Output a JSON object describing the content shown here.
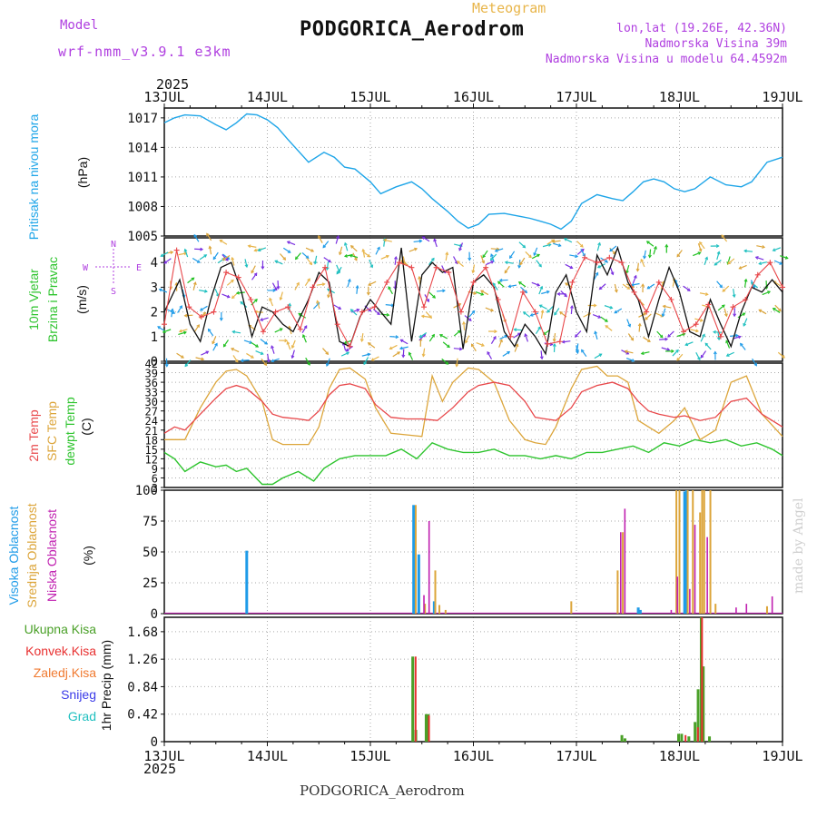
{
  "header": {
    "title": "PODGORICA_Aerodrom",
    "subtitle": "Meteogram",
    "model_label": "Model",
    "model_name": "wrf-nmm_v3.9.1 e3km",
    "lonlat": "lon,lat (19.26E, 42.36N)",
    "elevation": "Nadmorska Visina 39m",
    "model_elevation": "Nadmorska Visina u modelu 64.4592m",
    "year_top": "2025",
    "year_bottom": "2025",
    "footer_name": "PODGORICA_Aerodrom",
    "credit": "made by Angel"
  },
  "colors": {
    "pressure": "#1ea5e8",
    "temp2m": "#e8474a",
    "sfc": "#dca53a",
    "dewpt": "#2ec42e",
    "wind": "#111111",
    "high_cloud": "#1e9be8",
    "mid_cloud": "#dca53a",
    "low_cloud": "#c020b0",
    "total_precip": "#4aa028",
    "conv_precip": "#e83030",
    "frozen": "#f07a30",
    "snow": "#3a3ae8",
    "graupel": "#20c0c0",
    "purple_text": "#b040e0"
  },
  "chart_data": [
    {
      "type": "line",
      "title": "Pritisak na nivou mora",
      "ylabel": "(hPa)",
      "x_ticks": [
        "13JUL",
        "14JUL",
        "15JUL",
        "16JUL",
        "17JUL",
        "18JUL",
        "19JUL"
      ],
      "ylim": [
        1005,
        1018
      ],
      "y_ticks": [
        "1005",
        "1008",
        "1011",
        "1014",
        "1017"
      ],
      "series": [
        {
          "name": "Pritisak",
          "x": [
            0,
            0.1,
            0.2,
            0.35,
            0.5,
            0.6,
            0.7,
            0.8,
            0.9,
            1.0,
            1.1,
            1.2,
            1.4,
            1.55,
            1.65,
            1.75,
            1.85,
            2.0,
            2.1,
            2.25,
            2.4,
            2.5,
            2.6,
            2.75,
            2.85,
            2.95,
            3.05,
            3.15,
            3.3,
            3.45,
            3.55,
            3.65,
            3.75,
            3.85,
            3.95,
            4.05,
            4.2,
            4.35,
            4.45,
            4.55,
            4.65,
            4.75,
            4.85,
            4.95,
            5.05,
            5.15,
            5.3,
            5.45,
            5.6,
            5.7,
            5.85,
            6.0
          ],
          "values": [
            1016.5,
            1017.0,
            1017.3,
            1017.2,
            1016.3,
            1015.8,
            1016.5,
            1017.4,
            1017.3,
            1016.8,
            1016.0,
            1014.8,
            1012.5,
            1013.5,
            1013.0,
            1012.0,
            1011.8,
            1010.5,
            1009.3,
            1010.0,
            1010.5,
            1009.8,
            1008.8,
            1007.5,
            1006.5,
            1005.8,
            1006.2,
            1007.2,
            1007.3,
            1007.0,
            1006.8,
            1006.5,
            1006.2,
            1005.7,
            1006.5,
            1008.3,
            1009.2,
            1008.8,
            1008.6,
            1009.5,
            1010.5,
            1010.8,
            1010.5,
            1009.8,
            1009.5,
            1009.8,
            1011.0,
            1010.2,
            1010.0,
            1010.5,
            1012.5,
            1013.0
          ]
        }
      ]
    },
    {
      "type": "line",
      "title": "10m Vjetar Brzina i Pravac",
      "ylabel": "(m/s)",
      "ylim": [
        0,
        5
      ],
      "y_ticks": [
        "0",
        "1",
        "2",
        "3",
        "4"
      ],
      "compass": {
        "N": "N",
        "S": "S",
        "W": "W",
        "E": "E"
      },
      "series": [
        {
          "name": "Brzina",
          "x": [
            0,
            0.15,
            0.25,
            0.35,
            0.45,
            0.55,
            0.65,
            0.75,
            0.85,
            0.95,
            1.05,
            1.15,
            1.25,
            1.4,
            1.5,
            1.6,
            1.7,
            1.8,
            1.9,
            2.0,
            2.1,
            2.2,
            2.3,
            2.4,
            2.5,
            2.6,
            2.7,
            2.8,
            2.9,
            3.0,
            3.1,
            3.2,
            3.3,
            3.4,
            3.5,
            3.6,
            3.7,
            3.8,
            3.9,
            4.0,
            4.1,
            4.2,
            4.3,
            4.4,
            4.5,
            4.6,
            4.7,
            4.8,
            4.9,
            5.0,
            5.1,
            5.2,
            5.3,
            5.4,
            5.5,
            5.6,
            5.7,
            5.8,
            5.9,
            6.0
          ],
          "values": [
            2.0,
            3.3,
            1.5,
            0.8,
            2.5,
            3.8,
            4.0,
            2.8,
            1.0,
            2.2,
            2.0,
            1.5,
            1.2,
            2.5,
            3.6,
            3.2,
            0.8,
            0.6,
            1.8,
            2.5,
            2.0,
            1.5,
            4.6,
            0.8,
            3.5,
            4.0,
            3.6,
            3.8,
            0.5,
            3.2,
            3.5,
            3.0,
            1.2,
            0.6,
            1.5,
            1.0,
            0.3,
            2.8,
            3.5,
            2.0,
            1.2,
            4.3,
            3.5,
            4.6,
            3.2,
            2.5,
            1.0,
            2.5,
            3.8,
            2.8,
            1.2,
            1.0,
            2.5,
            1.5,
            0.6,
            2.0,
            3.0,
            2.8,
            3.3,
            2.8
          ]
        },
        {
          "name": "Brzina (+)",
          "x": [
            0,
            0.12,
            0.24,
            0.36,
            0.48,
            0.6,
            0.72,
            0.84,
            0.96,
            1.08,
            1.2,
            1.32,
            1.44,
            1.56,
            1.68,
            1.8,
            1.92,
            2.04,
            2.16,
            2.28,
            2.4,
            2.52,
            2.64,
            2.76,
            2.88,
            3.0,
            3.12,
            3.24,
            3.36,
            3.48,
            3.6,
            3.72,
            3.84,
            3.96,
            4.08,
            4.2,
            4.32,
            4.44,
            4.56,
            4.68,
            4.8,
            4.92,
            5.04,
            5.16,
            5.28,
            5.4,
            5.52,
            5.64,
            5.76,
            5.88,
            6.0
          ],
          "values": [
            1.5,
            4.5,
            2.2,
            1.8,
            2.0,
            3.6,
            3.4,
            2.5,
            1.2,
            2.0,
            2.2,
            1.3,
            3.0,
            3.8,
            1.5,
            0.6,
            2.0,
            2.2,
            3.2,
            4.0,
            3.8,
            2.2,
            3.8,
            3.6,
            2.0,
            3.2,
            3.8,
            2.5,
            1.0,
            2.8,
            2.0,
            0.7,
            0.8,
            3.2,
            4.2,
            4.0,
            4.2,
            4.0,
            2.8,
            2.0,
            3.2,
            2.5,
            1.2,
            1.5,
            2.3,
            1.0,
            2.2,
            2.5,
            3.5,
            4.0,
            3.0
          ]
        }
      ]
    },
    {
      "type": "line",
      "title": "2m Temp / SFC Temp / dewpt Temp",
      "ylabel": "(C)",
      "ylim": [
        3,
        42
      ],
      "y_ticks": [
        "3",
        "6",
        "9",
        "12",
        "15",
        "18",
        "21",
        "24",
        "27",
        "30",
        "33",
        "36",
        "39",
        "42"
      ],
      "series": [
        {
          "name": "2m Temp",
          "x": [
            0,
            0.1,
            0.2,
            0.35,
            0.5,
            0.6,
            0.7,
            0.8,
            0.95,
            1.05,
            1.15,
            1.3,
            1.4,
            1.5,
            1.6,
            1.7,
            1.8,
            1.95,
            2.05,
            2.2,
            2.35,
            2.5,
            2.65,
            2.8,
            2.95,
            3.05,
            3.2,
            3.35,
            3.5,
            3.6,
            3.7,
            3.8,
            3.95,
            4.05,
            4.2,
            4.35,
            4.5,
            4.6,
            4.7,
            4.8,
            4.95,
            5.05,
            5.2,
            5.35,
            5.5,
            5.65,
            5.8,
            6.0
          ],
          "values": [
            20,
            22,
            21,
            26,
            31,
            34,
            35,
            34,
            30,
            26,
            25,
            24.5,
            24,
            27,
            32,
            35,
            35.5,
            34,
            29,
            25,
            24.5,
            24.5,
            24,
            28,
            33,
            35,
            36,
            35,
            30,
            25,
            24.5,
            24,
            28,
            33,
            35,
            36,
            34,
            30,
            27,
            26,
            25,
            25.5,
            24,
            25,
            30,
            31,
            26,
            22
          ]
        },
        {
          "name": "SFC Temp",
          "x": [
            0,
            0.1,
            0.2,
            0.35,
            0.5,
            0.6,
            0.7,
            0.8,
            0.95,
            1.05,
            1.15,
            1.3,
            1.4,
            1.5,
            1.6,
            1.7,
            1.8,
            1.95,
            2.05,
            2.2,
            2.35,
            2.5,
            2.6,
            2.7,
            2.8,
            2.95,
            3.05,
            3.2,
            3.35,
            3.5,
            3.6,
            3.7,
            3.8,
            3.95,
            4.05,
            4.2,
            4.3,
            4.4,
            4.5,
            4.6,
            4.7,
            4.8,
            4.95,
            5.05,
            5.2,
            5.35,
            5.5,
            5.65,
            5.8,
            6.0
          ],
          "values": [
            18,
            18,
            18,
            28,
            36,
            39.5,
            40,
            38,
            30,
            18,
            16.5,
            16.5,
            16.5,
            22,
            34,
            40,
            40.5,
            37,
            28,
            20,
            19.5,
            19,
            38,
            30,
            36,
            40.5,
            40,
            36,
            24,
            18,
            17,
            16.5,
            22,
            34,
            40,
            41,
            38,
            38,
            36,
            24,
            22,
            20,
            24,
            28,
            18,
            21,
            36,
            38,
            26,
            19
          ]
        },
        {
          "name": "dewpt Temp",
          "x": [
            0,
            0.1,
            0.2,
            0.35,
            0.5,
            0.6,
            0.7,
            0.8,
            0.95,
            1.05,
            1.15,
            1.3,
            1.45,
            1.55,
            1.7,
            1.85,
            2.0,
            2.15,
            2.3,
            2.45,
            2.6,
            2.75,
            2.9,
            3.05,
            3.2,
            3.35,
            3.5,
            3.65,
            3.8,
            3.95,
            4.1,
            4.25,
            4.4,
            4.55,
            4.7,
            4.85,
            5.0,
            5.15,
            5.3,
            5.45,
            5.6,
            5.75,
            5.9,
            6.0
          ],
          "values": [
            14,
            12,
            8,
            11,
            9.5,
            10,
            8,
            9,
            4,
            4,
            6,
            8,
            5,
            9,
            12,
            13,
            13,
            13,
            15,
            12,
            17,
            15,
            14,
            14,
            15,
            13,
            13,
            12,
            13,
            12,
            14,
            14,
            15,
            16,
            14,
            17,
            16,
            18,
            17,
            18,
            16,
            17,
            15,
            13
          ]
        }
      ]
    },
    {
      "type": "bar",
      "title": "Visoka / Srednja / Niska Oblacnost",
      "ylabel": "(%)",
      "ylim": [
        0,
        100
      ],
      "y_ticks": [
        "0",
        "25",
        "50",
        "75",
        "100"
      ],
      "series": [
        {
          "name": "Visoka Oblacnost",
          "x": [
            0.8,
            2.42,
            2.47,
            2.62,
            4.6,
            4.62,
            5.05,
            5.07
          ],
          "values": [
            51,
            88,
            48,
            10,
            5,
            3,
            99,
            100
          ]
        },
        {
          "name": "Srednja Oblacnost",
          "x": [
            2.44,
            2.53,
            2.63,
            2.67,
            2.73,
            3.95,
            4.4,
            4.45,
            4.97,
            5.0,
            5.08,
            5.13,
            5.2,
            5.22,
            5.24,
            5.3,
            5.35,
            5.85
          ],
          "values": [
            88,
            8,
            35,
            7,
            3,
            10,
            35,
            66,
            100,
            100,
            100,
            100,
            82,
            100,
            100,
            100,
            8,
            6
          ]
        },
        {
          "name": "Niska Oblacnost",
          "x": [
            2.52,
            2.57,
            4.43,
            4.47,
            4.92,
            4.98,
            5.1,
            5.15,
            5.27,
            5.55,
            5.65,
            5.9
          ],
          "values": [
            15,
            75,
            66,
            85,
            3,
            30,
            20,
            72,
            62,
            5,
            8,
            14
          ]
        }
      ]
    },
    {
      "type": "bar",
      "title": "1hr Precip",
      "ylabel": "1hr Precip (mm)",
      "ylim": [
        0,
        1.9
      ],
      "y_ticks": [
        "0",
        "0.42",
        "0.84",
        "1.26",
        "1.68"
      ],
      "legend": [
        "Ukupna Kisa",
        "Konvek.Kisa",
        "Zaledj.Kisa",
        "Snijeg",
        "Grad"
      ],
      "series": [
        {
          "name": "Ukupna Kisa",
          "x": [
            2.42,
            2.45,
            2.55,
            2.57,
            4.45,
            4.48,
            5.0,
            5.03,
            5.1,
            5.16,
            5.19,
            5.22,
            5.24,
            5.3
          ],
          "values": [
            1.3,
            0.18,
            0.42,
            0.42,
            0.1,
            0.05,
            0.12,
            0.12,
            0.08,
            0.3,
            0.8,
            1.9,
            1.15,
            0.08
          ]
        },
        {
          "name": "Konvek.Kisa",
          "x": [
            2.43,
            2.56,
            5.05,
            5.17,
            5.21
          ],
          "values": [
            1.3,
            0.4,
            0.1,
            0.22,
            1.9
          ]
        }
      ]
    }
  ]
}
